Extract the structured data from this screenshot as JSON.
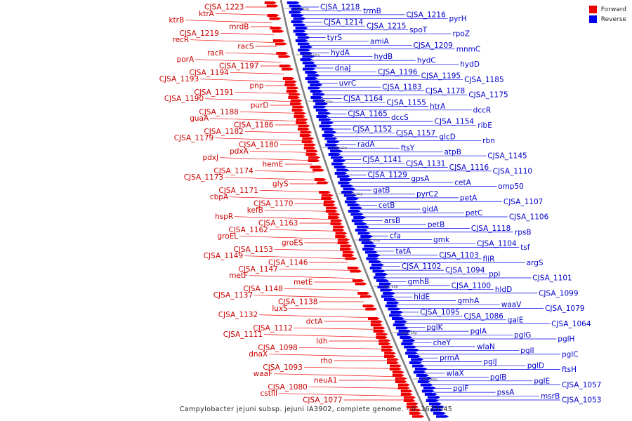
{
  "caption": "Campylobacter jejuni subsp. jejuni IA3902, complete genome. - 0..1635045",
  "legend": [
    {
      "label": "Forward",
      "color": "#ee0000"
    },
    {
      "label": "Reverse",
      "color": "#0000ee"
    }
  ],
  "ticks": [
    "1220 kbp",
    "1200 kbp",
    "1180 kbp",
    "1160 kbp",
    "1140 kbp",
    "1120 kbp",
    "1100 kbp",
    "1080 kbp",
    "1060 kbp"
  ],
  "forward_labels": [
    "CJSA_1223",
    "ktrA",
    "ktrB",
    "mrdB",
    "CJSA_1219",
    "recR",
    "racS",
    "racR",
    "porA",
    "CJSA_1197",
    "CJSA_1194",
    "CJSA_1193",
    "pnp",
    "CJSA_1191",
    "CJSA_1190",
    "purD",
    "CJSA_1188",
    "guaA",
    "CJSA_1186",
    "CJSA_1182",
    "CJSA_1179",
    "CJSA_1180",
    "pdxA",
    "pdxJ",
    "hemE",
    "CJSA_1174",
    "CJSA_1173",
    "glyS",
    "CJSA_1171",
    "cbpA",
    "CJSA_1170",
    "kefB",
    "hspR",
    "CJSA_1163",
    "CJSA_1162",
    "groEL",
    "groES",
    "CJSA_1153",
    "CJSA_1149",
    "CJSA_1146",
    "CJSA_1147",
    "metF",
    "metE",
    "CJSA_1148",
    "CJSA_1137",
    "CJSA_1138",
    "luxS",
    "CJSA_1132",
    "dctA",
    "CJSA_1112",
    "CJSA_1111",
    "ldh",
    "CJSA_1098",
    "dnaX",
    "rho",
    "CJSA_1093",
    "waaF",
    "neuA1",
    "CJSA_1080",
    "cstIII",
    "CJSA_1077"
  ],
  "reverse_labels": [
    "CJSA_1218",
    "trmB",
    "CJSA_1216",
    "pyrH",
    "CJSA_1214",
    "CJSA_1215",
    "spoT",
    "rpoZ",
    "tyrS",
    "amiA",
    "CJSA_1209",
    "mnmC",
    "hydA",
    "hydB",
    "hydC",
    "hydD",
    "dnaJ",
    "CJSA_1196",
    "CJSA_1195",
    "CJSA_1185",
    "uvrC",
    "CJSA_1183",
    "CJSA_1178",
    "CJSA_1175",
    "CJSA_1164",
    "CJSA_1155",
    "htrA",
    "dccR",
    "CJSA_1165",
    "dccS",
    "CJSA_1154",
    "ribE",
    "CJSA_1152",
    "CJSA_1157",
    "glcD",
    "rbn",
    "radA",
    "ftsY",
    "atpB",
    "CJSA_1145",
    "CJSA_1141",
    "CJSA_1131",
    "CJSA_1116",
    "CJSA_1110",
    "CJSA_1129",
    "gpsA",
    "cetA",
    "omp50",
    "gatB",
    "pyrC2",
    "petA",
    "CJSA_1107",
    "cetB",
    "gidA",
    "petC",
    "CJSA_1106",
    "arsB",
    "petB",
    "CJSA_1118",
    "rpsB",
    "cfa",
    "gmk",
    "CJSA_1104",
    "tsf",
    "tatA",
    "CJSA_1103",
    "fliR",
    "argS",
    "CJSA_1102",
    "CJSA_1094",
    "ppi",
    "CJSA_1101",
    "gmhB",
    "CJSA_1100",
    "hldD",
    "CJSA_1099",
    "hldE",
    "gmhA",
    "waaV",
    "CJSA_1079",
    "CJSA_1095",
    "CJSA_1086",
    "galE",
    "CJSA_1064",
    "pglK",
    "pglA",
    "pglG",
    "pglH",
    "cheY",
    "wlaN",
    "pglI",
    "pglC",
    "prmA",
    "pglJ",
    "pglD",
    "ftsH",
    "wlaX",
    "pglB",
    "pglE",
    "CJSA_1057",
    "pglF",
    "pssA",
    "msrB",
    "CJSA_1053"
  ]
}
